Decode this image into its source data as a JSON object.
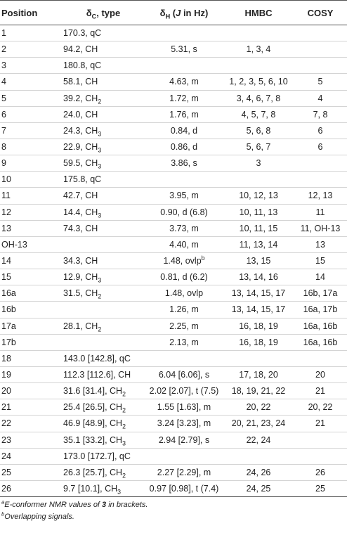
{
  "headers": {
    "position": "Position",
    "dc_sym": "δ",
    "dc_sub": "C",
    "dc_rest": ", type",
    "dh_sym": "δ",
    "dh_sub": "H",
    "dh_open": " (",
    "dh_j": "J",
    "dh_rest": " in Hz)",
    "hmbc": "HMBC",
    "cosy": "COSY"
  },
  "rows": [
    {
      "pos": "1",
      "dc": "170.3, qC",
      "dh": "",
      "hmbc": "",
      "cosy": ""
    },
    {
      "pos": "2",
      "dc": "94.2, CH",
      "dh": "5.31, s",
      "hmbc": "1, 3, 4",
      "cosy": ""
    },
    {
      "pos": "3",
      "dc": "180.8, qC",
      "dh": "",
      "hmbc": "",
      "cosy": ""
    },
    {
      "pos": "4",
      "dc": "58.1, CH",
      "dh": "4.63, m",
      "hmbc": "1, 2, 3, 5, 6, 10",
      "cosy": "5"
    },
    {
      "pos": "5",
      "dc": "39.2, CH",
      "dc_sub": "2",
      "dh": "1.72, m",
      "hmbc": "3, 4, 6, 7, 8",
      "cosy": "4"
    },
    {
      "pos": "6",
      "dc": "24.0, CH",
      "dh": "1.76, m",
      "hmbc": "4, 5, 7, 8",
      "cosy": "7, 8"
    },
    {
      "pos": "7",
      "dc": "24.3, CH",
      "dc_sub": "3",
      "dh": "0.84, d",
      "hmbc": "5, 6, 8",
      "cosy": "6"
    },
    {
      "pos": "8",
      "dc": "22.9, CH",
      "dc_sub": "3",
      "dh": "0.86, d",
      "hmbc": "5, 6, 7",
      "cosy": "6"
    },
    {
      "pos": "9",
      "dc": "59.5, CH",
      "dc_sub": "3",
      "dh": "3.86, s",
      "hmbc": "3",
      "cosy": ""
    },
    {
      "pos": "10",
      "dc": "175.8, qC",
      "dh": "",
      "hmbc": "",
      "cosy": ""
    },
    {
      "pos": "11",
      "dc": "42.7, CH",
      "dh": "3.95, m",
      "hmbc": "10, 12, 13",
      "cosy": "12, 13"
    },
    {
      "pos": "12",
      "dc": "14.4, CH",
      "dc_sub": "3",
      "dh": "0.90, d (6.8)",
      "hmbc": "10, 11, 13",
      "cosy": "11"
    },
    {
      "pos": "13",
      "dc": "74.3, CH",
      "dh": "3.73, m",
      "hmbc": "10, 11, 15",
      "cosy": "11, OH-13"
    },
    {
      "pos": "OH-13",
      "dc": "",
      "dh": "4.40, m",
      "hmbc": "11, 13, 14",
      "cosy": "13"
    },
    {
      "pos": "14",
      "dc": "34.3, CH",
      "dh": "1.48, ovlp",
      "dh_sup": "b",
      "hmbc": "13, 15",
      "cosy": "15"
    },
    {
      "pos": "15",
      "dc": "12.9, CH",
      "dc_sub": "3",
      "dh": "0.81, d (6.2)",
      "hmbc": "13, 14, 16",
      "cosy": "14"
    },
    {
      "pos": "16a",
      "dc": "31.5, CH",
      "dc_sub": "2",
      "dh": "1.48, ovlp",
      "hmbc": "13, 14, 15, 17",
      "cosy": "16b, 17a"
    },
    {
      "pos": "16b",
      "dc": "",
      "dh": "1.26, m",
      "hmbc": "13, 14, 15, 17",
      "cosy": "16a, 17b"
    },
    {
      "pos": "17a",
      "dc": "28.1, CH",
      "dc_sub": "2",
      "dh": "2.25, m",
      "hmbc": "16, 18, 19",
      "cosy": "16a, 16b"
    },
    {
      "pos": "17b",
      "dc": "",
      "dh": "2.13, m",
      "hmbc": "16, 18, 19",
      "cosy": "16a, 16b"
    },
    {
      "pos": "18",
      "dc": "143.0 [142.8], qC",
      "dh": "",
      "hmbc": "",
      "cosy": ""
    },
    {
      "pos": "19",
      "dc": "112.3 [112.6], CH",
      "dh": "6.04 [6.06], s",
      "hmbc": "17, 18, 20",
      "cosy": "20"
    },
    {
      "pos": "20",
      "dc": "31.6 [31.4], CH",
      "dc_sub": "2",
      "dh": "2.02 [2.07], t (7.5)",
      "hmbc": "18, 19, 21, 22",
      "cosy": "21"
    },
    {
      "pos": "21",
      "dc": "25.4 [26.5], CH",
      "dc_sub": "2",
      "dh": "1.55 [1.63], m",
      "hmbc": "20, 22",
      "cosy": "20, 22"
    },
    {
      "pos": "22",
      "dc": "46.9 [48.9], CH",
      "dc_sub": "2",
      "dh": "3.24 [3.23], m",
      "hmbc": "20, 21, 23, 24",
      "cosy": "21"
    },
    {
      "pos": "23",
      "dc": "35.1 [33.2], CH",
      "dc_sub": "3",
      "dh": "2.94 [2.79], s",
      "hmbc": "22, 24",
      "cosy": ""
    },
    {
      "pos": "24",
      "dc": "173.0 [172.7], qC",
      "dh": "",
      "hmbc": "",
      "cosy": ""
    },
    {
      "pos": "25",
      "dc": "26.3 [25.7], CH",
      "dc_sub": "2",
      "dh": "2.27 [2.29], m",
      "hmbc": "24, 26",
      "cosy": "26"
    },
    {
      "pos": "26",
      "dc": "9.7 [10.1], CH",
      "dc_sub": "3",
      "dh": "0.97 [0.98], t (7.4)",
      "hmbc": "24, 25",
      "cosy": "25"
    }
  ],
  "footnotes": {
    "a_mark": "a",
    "a_text_1": "E-conformer NMR values of ",
    "a_bold": "3",
    "a_text_2": " in brackets.",
    "b_mark": "b",
    "b_text": "Overlapping signals."
  }
}
